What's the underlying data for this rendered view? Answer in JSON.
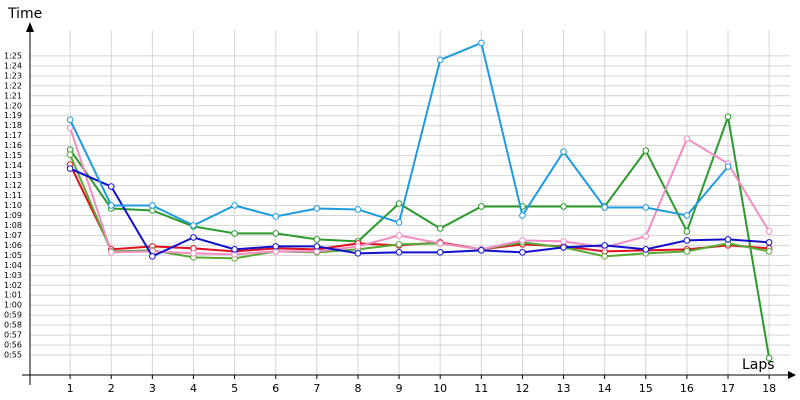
{
  "chart_data": {
    "type": "line",
    "y_label": "Time",
    "x_label": "Laps",
    "x": [
      1,
      2,
      3,
      4,
      5,
      6,
      7,
      8,
      9,
      10,
      11,
      12,
      13,
      14,
      15,
      16,
      17,
      18
    ],
    "xlim": [
      0,
      18.5
    ],
    "xticks": [
      1,
      2,
      3,
      4,
      5,
      6,
      7,
      8,
      9,
      10,
      11,
      12,
      13,
      14,
      15,
      16,
      17,
      18
    ],
    "ylim": [
      53,
      88
    ],
    "yticks": [
      {
        "value": 55,
        "label": "0:55"
      },
      {
        "value": 56,
        "label": "0:56"
      },
      {
        "value": 57,
        "label": "0:57"
      },
      {
        "value": 58,
        "label": "0:58"
      },
      {
        "value": 59,
        "label": "0:59"
      },
      {
        "value": 60,
        "label": "1:00"
      },
      {
        "value": 61,
        "label": "1:01"
      },
      {
        "value": 62,
        "label": "1:02"
      },
      {
        "value": 63,
        "label": "1:03"
      },
      {
        "value": 64,
        "label": "1:04"
      },
      {
        "value": 65,
        "label": "1:05"
      },
      {
        "value": 66,
        "label": "1:06"
      },
      {
        "value": 67,
        "label": "1:07"
      },
      {
        "value": 68,
        "label": "1:08"
      },
      {
        "value": 69,
        "label": "1:09"
      },
      {
        "value": 70,
        "label": "1:10"
      },
      {
        "value": 71,
        "label": "1:11"
      },
      {
        "value": 72,
        "label": "1:12"
      },
      {
        "value": 73,
        "label": "1:13"
      },
      {
        "value": 74,
        "label": "1:14"
      },
      {
        "value": 75,
        "label": "1:15"
      },
      {
        "value": 76,
        "label": "1:16"
      },
      {
        "value": 77,
        "label": "1:17"
      },
      {
        "value": 78,
        "label": "1:18"
      },
      {
        "value": 79,
        "label": "1:19"
      },
      {
        "value": 80,
        "label": "1:20"
      },
      {
        "value": 81,
        "label": "1:21"
      },
      {
        "value": 82,
        "label": "1:22"
      },
      {
        "value": 83,
        "label": "1:23"
      },
      {
        "value": 84,
        "label": "1:24"
      },
      {
        "value": 85,
        "label": "1:25"
      }
    ],
    "grid": true,
    "series": [
      {
        "color": "#2a9a2a",
        "values": [
          75.6,
          69.7,
          69.5,
          67.9,
          67.2,
          67.2,
          66.6,
          66.4,
          70.2,
          67.7,
          69.9,
          69.9,
          69.9,
          69.9,
          75.5,
          67.4,
          78.9,
          54.7
        ]
      },
      {
        "color": "#e01020",
        "values": [
          74.1,
          65.6,
          65.9,
          65.7,
          65.4,
          65.7,
          65.6,
          66.2,
          66.0,
          66.3,
          65.6,
          66.1,
          65.9,
          65.4,
          65.5,
          65.6,
          66.0,
          65.7
        ]
      },
      {
        "color": "#55aa33",
        "values": [
          75.1,
          65.4,
          65.5,
          64.8,
          64.7,
          65.4,
          65.3,
          65.6,
          66.1,
          66.2,
          65.6,
          66.3,
          65.8,
          64.9,
          65.2,
          65.4,
          66.2,
          65.4
        ]
      },
      {
        "color": "#f28cc4",
        "values": [
          77.8,
          65.3,
          65.4,
          65.2,
          65.1,
          65.4,
          65.4,
          65.9,
          67.0,
          66.2,
          65.6,
          66.5,
          66.4,
          65.8,
          66.9,
          76.7,
          74.2,
          67.4
        ]
      },
      {
        "color": "#1010cc",
        "values": [
          73.7,
          71.9,
          64.9,
          66.8,
          65.6,
          65.9,
          65.9,
          65.2,
          65.3,
          65.3,
          65.5,
          65.3,
          65.8,
          66.0,
          65.6,
          66.5,
          66.6,
          66.3
        ]
      },
      {
        "color": "#1e9be0",
        "values": [
          78.6,
          70.0,
          70.0,
          68.0,
          70.0,
          68.9,
          69.7,
          69.6,
          68.3,
          84.6,
          86.3,
          69.0,
          75.4,
          69.8,
          69.8,
          69.0,
          73.9,
          null
        ]
      }
    ]
  }
}
